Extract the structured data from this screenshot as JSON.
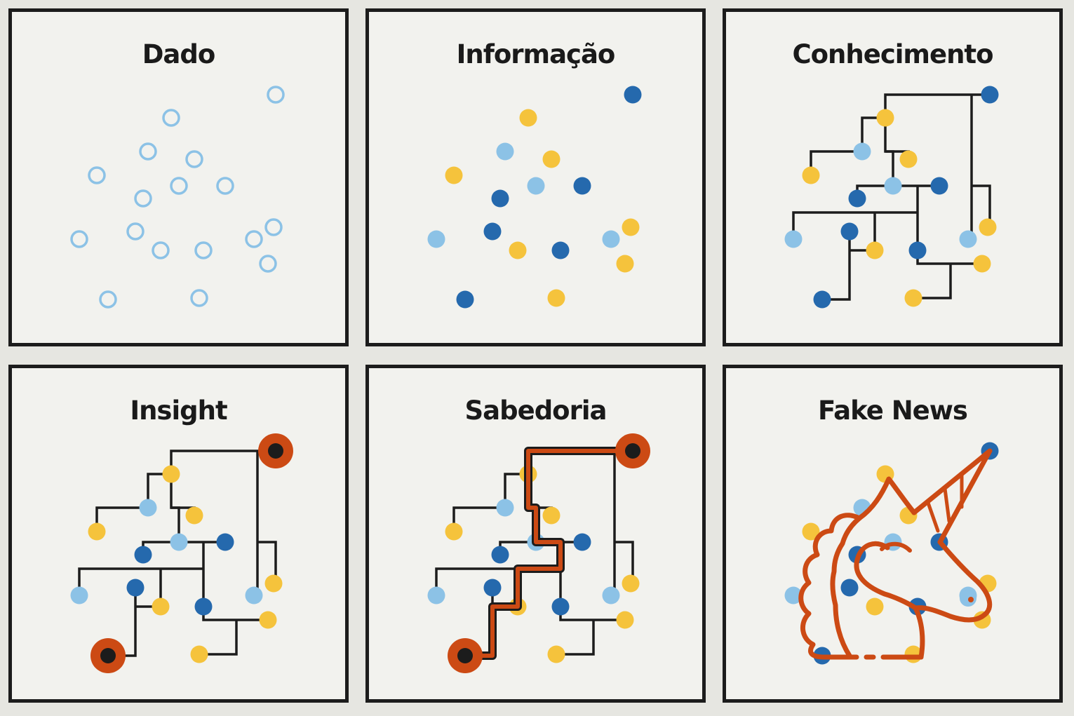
{
  "panels": [
    {
      "key": "dado",
      "title": "Dado"
    },
    {
      "key": "informacao",
      "title": "Informação"
    },
    {
      "key": "conhecimento",
      "title": "Conhecimento"
    },
    {
      "key": "insight",
      "title": "Insight"
    },
    {
      "key": "sabedoria",
      "title": "Sabedoria"
    },
    {
      "key": "fake-news",
      "title": "Fake News"
    }
  ],
  "colors": {
    "light_blue": "#8cc2e6",
    "dark_blue": "#2569ad",
    "yellow": "#f5c33c",
    "orange": "#cc4a14",
    "line": "#1c1c1c",
    "panel_bg": "#f2f2ee",
    "page_bg": "#e6e6e1"
  },
  "icons": {
    "fake_news": "unicorn-head-icon"
  }
}
